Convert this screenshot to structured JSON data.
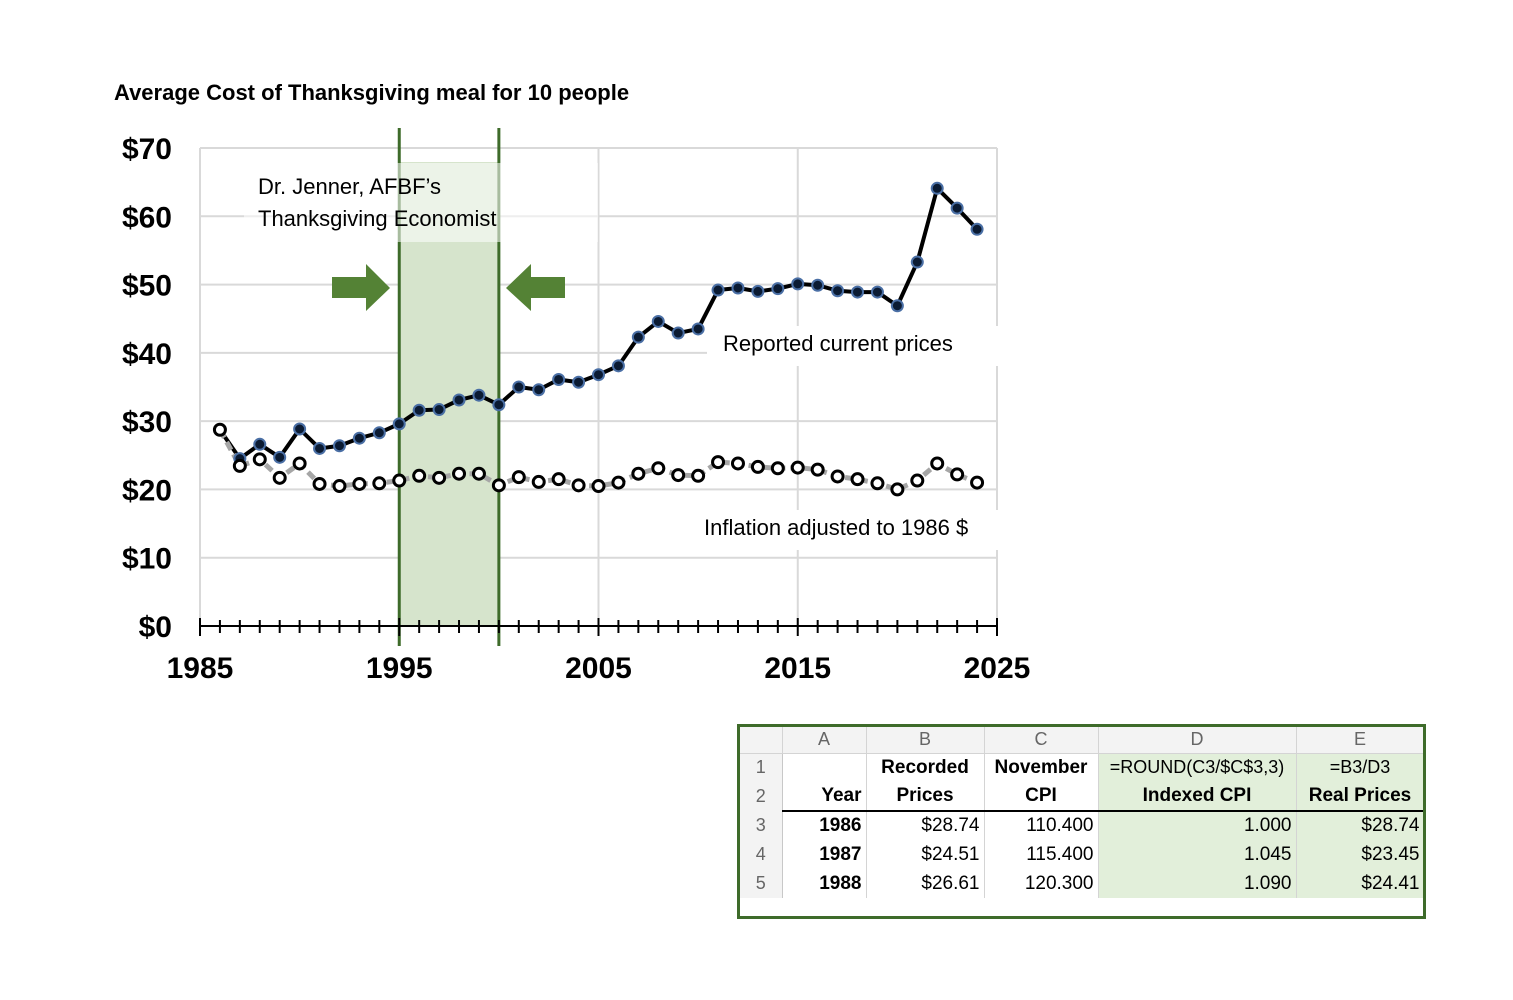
{
  "chart_data": {
    "type": "line",
    "title": "Average Cost of Thanksgiving meal for 10 people",
    "xlabel": "",
    "ylabel": "",
    "xlim": [
      1985,
      2025
    ],
    "ylim": [
      0,
      70
    ],
    "x_ticks": [
      "1985",
      "1995",
      "2005",
      "2015",
      "2025"
    ],
    "x_tick_values": [
      1985,
      1995,
      2005,
      2015,
      2025
    ],
    "y_ticks": [
      "$0",
      "$10",
      "$20",
      "$30",
      "$40",
      "$50",
      "$60",
      "$70"
    ],
    "y_tick_values": [
      0,
      10,
      20,
      30,
      40,
      50,
      60,
      70
    ],
    "grid": true,
    "x": [
      1986,
      1987,
      1988,
      1989,
      1990,
      1991,
      1992,
      1993,
      1994,
      1995,
      1996,
      1997,
      1998,
      1999,
      2000,
      2001,
      2002,
      2003,
      2004,
      2005,
      2006,
      2007,
      2008,
      2009,
      2010,
      2011,
      2012,
      2013,
      2014,
      2015,
      2016,
      2017,
      2018,
      2019,
      2020,
      2021,
      2022,
      2023,
      2024
    ],
    "series": [
      {
        "name": "Reported current prices",
        "values": [
          28.74,
          24.51,
          26.61,
          24.7,
          28.85,
          26.0,
          26.4,
          27.5,
          28.3,
          29.6,
          31.6,
          31.7,
          33.1,
          33.8,
          32.4,
          35.0,
          34.6,
          36.1,
          35.7,
          36.8,
          38.1,
          42.3,
          44.6,
          42.9,
          43.5,
          49.2,
          49.5,
          49.0,
          49.4,
          50.1,
          49.9,
          49.1,
          48.9,
          48.9,
          46.9,
          53.3,
          64.1,
          61.2,
          58.1
        ],
        "color": "#000000",
        "marker_fill": "#0b1b33",
        "marker_stroke": "#4a6fa5"
      },
      {
        "name": "Inflation adjusted to 1986 $",
        "values": [
          28.74,
          23.45,
          24.41,
          21.7,
          23.8,
          20.8,
          20.5,
          20.8,
          20.9,
          21.3,
          22.0,
          21.7,
          22.3,
          22.3,
          20.6,
          21.8,
          21.1,
          21.5,
          20.6,
          20.5,
          21.0,
          22.3,
          23.1,
          22.1,
          22.0,
          24.0,
          23.8,
          23.3,
          23.1,
          23.2,
          22.9,
          21.9,
          21.5,
          20.9,
          20.0,
          21.3,
          23.8,
          22.2,
          21.0
        ],
        "color": "#a6a6a6",
        "marker_fill": "#ffffff",
        "marker_stroke": "#000000"
      }
    ],
    "highlight": {
      "range": [
        1995,
        2000
      ],
      "fill": "#d6e4cc",
      "line_color": "#3e6b2a"
    },
    "annotations": {
      "highlight_label": [
        "Dr. Jenner, AFBF’s",
        "Thanksgiving Economist"
      ],
      "current_label": "Reported current prices",
      "adjusted_label": "Inflation adjusted to 1986 $"
    },
    "arrow_color": "#548235"
  },
  "spreadsheet": {
    "columns": [
      "A",
      "B",
      "C",
      "D",
      "E"
    ],
    "rows": [
      {
        "num": "1",
        "cells": [
          "",
          "Recorded",
          "November",
          "=ROUND(C3/$C$3,3)",
          "=B3/D3"
        ]
      },
      {
        "num": "2",
        "cells": [
          "Year",
          "Prices",
          "CPI",
          "Indexed CPI",
          "Real Prices"
        ]
      },
      {
        "num": "3",
        "cells": [
          "1986",
          "$28.74",
          "110.400",
          "1.000",
          "$28.74"
        ]
      },
      {
        "num": "4",
        "cells": [
          "1987",
          "$24.51",
          "115.400",
          "1.045",
          "$23.45"
        ]
      },
      {
        "num": "5",
        "cells": [
          "1988",
          "$26.61",
          "120.300",
          "1.090",
          "$24.41"
        ]
      }
    ],
    "border_color": "#3e6b2a",
    "highlight_color": "#e2efda"
  }
}
